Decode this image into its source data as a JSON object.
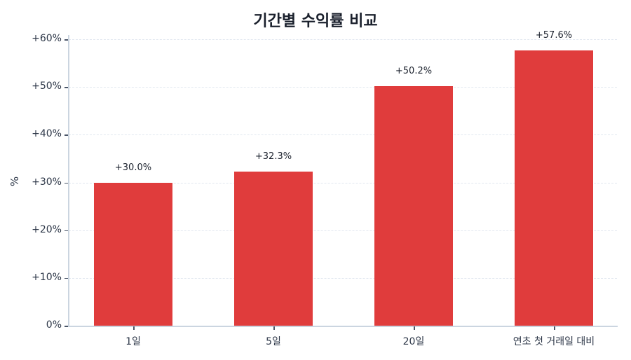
{
  "chart_data": {
    "type": "bar",
    "title": "기간별 수익률 비교",
    "xlabel": "",
    "ylabel": "%",
    "categories": [
      "1일",
      "5일",
      "20일",
      "연초 첫 거래일 대비"
    ],
    "values": [
      30.0,
      32.3,
      50.2,
      57.6
    ],
    "value_labels": [
      "+30.0%",
      "+32.3%",
      "+50.2%",
      "+57.6%"
    ],
    "ylim": [
      0,
      60
    ],
    "yticks": [
      0,
      10,
      20,
      30,
      40,
      50,
      60
    ],
    "ytick_labels": [
      "0%",
      "+10%",
      "+20%",
      "+30%",
      "+40%",
      "+50%",
      "+60%"
    ],
    "grid": "horizontal dashed",
    "legend": null,
    "bar_color": "#e03c3c"
  }
}
